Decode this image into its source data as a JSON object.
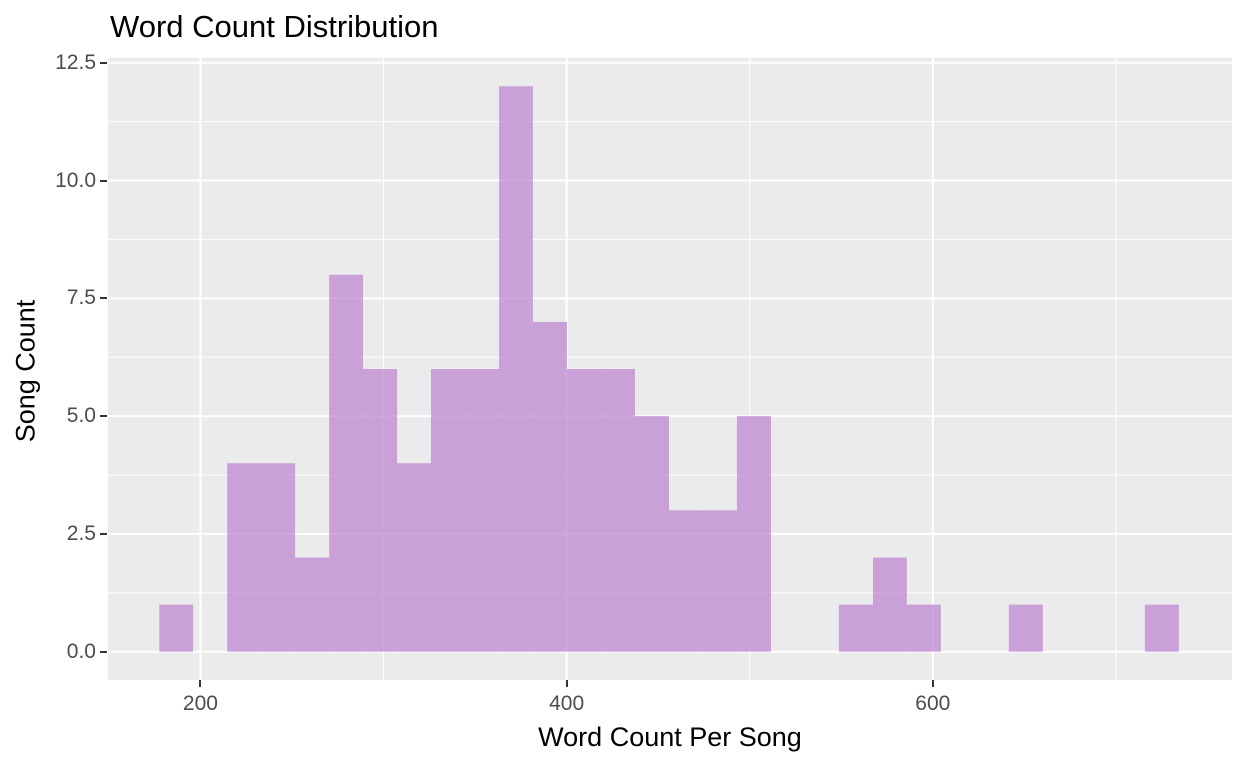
{
  "chart_data": {
    "type": "histogram",
    "title": "Word Count Distribution",
    "xlabel": "Word Count Per Song",
    "ylabel": "Song Count",
    "bin_edges": [
      177.5,
      196.0,
      214.6,
      233.1,
      251.7,
      270.3,
      288.8,
      307.4,
      325.9,
      344.5,
      363.1,
      381.6,
      400.2,
      418.8,
      437.3,
      455.9,
      474.4,
      493.0,
      511.6,
      530.1,
      548.7,
      567.3,
      585.8,
      604.4,
      623.0,
      641.5,
      660.1,
      678.7,
      697.2,
      715.8,
      734.4
    ],
    "counts": [
      1,
      0,
      4,
      4,
      2,
      8,
      6,
      4,
      6,
      6,
      12,
      7,
      6,
      6,
      5,
      3,
      3,
      5,
      0,
      0,
      1,
      2,
      1,
      0,
      0,
      1,
      0,
      0,
      0,
      1
    ],
    "n_bins": 30,
    "bin_width": 18.56,
    "total_songs": 94,
    "max_count": 12,
    "xlim": [
      149.5,
      763.4
    ],
    "ylim": [
      -0.6,
      12.6
    ],
    "x_axis": {
      "tick_values": [
        200,
        400,
        600
      ],
      "tick_labels": [
        "200",
        "400",
        "600"
      ],
      "minor_gridlines": [
        300,
        500,
        700
      ]
    },
    "y_axis": {
      "tick_values": [
        0,
        2.5,
        5,
        7.5,
        10,
        12.5
      ],
      "tick_labels": [
        "0.0",
        "2.5",
        "5.0",
        "7.5",
        "10.0",
        "12.5"
      ],
      "minor_gridlines": [
        1.25,
        3.75,
        6.25,
        8.75,
        11.25
      ]
    },
    "grid": true,
    "legend": "none",
    "style": "ggplot2-gray-theme"
  },
  "colors": {
    "page_background": "#FFFFFF",
    "panel_background": "#EBEBEB",
    "gridline_major": "#FFFFFF",
    "gridline_minor": "#FFFFFF",
    "bar_fill": "#BA80D0",
    "bar_opacity": 0.7,
    "bar_fill_rendered": "#C9A0D8",
    "tick_mark": "#333333",
    "tick_label": "#4D4D4D",
    "title_text": "#000000",
    "axis_title_text": "#000000"
  }
}
